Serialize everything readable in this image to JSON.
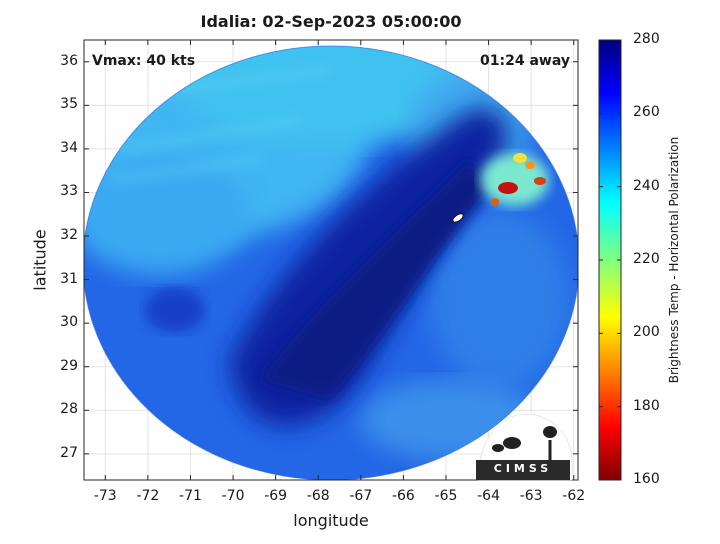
{
  "title": "Idalia: 02-Sep-2023 05:00:00",
  "annotations": {
    "vmax": "Vmax: 40 kts",
    "time_away": "01:24 away"
  },
  "logo_text": "CIMSS",
  "chart_data": {
    "type": "heatmap",
    "xlabel": "longitude",
    "ylabel": "latitude",
    "colorbar_label": "Brightness Temp - Horizontal Polarization",
    "xlim": [
      -73.5,
      -61.9
    ],
    "ylim": [
      26.4,
      36.5
    ],
    "x_ticks": [
      "-73",
      "-72",
      "-71",
      "-70",
      "-69",
      "-68",
      "-67",
      "-66",
      "-65",
      "-64",
      "-63",
      "-62"
    ],
    "y_ticks": [
      "27",
      "28",
      "29",
      "30",
      "31",
      "32",
      "33",
      "34",
      "35",
      "36"
    ],
    "colorbar_range": [
      160,
      280
    ],
    "colorbar_ticks": [
      "160",
      "180",
      "200",
      "220",
      "240",
      "260",
      "280"
    ],
    "colormap": "jet",
    "grid": true,
    "swath_center": [
      -67.75,
      31.35
    ],
    "swath_radius_deg": 5.85,
    "storm_center": [
      -64.7,
      32.2
    ],
    "colors": {
      "cold_band": "#0b1e8f",
      "background_field": "#1f5fe0",
      "warm_edge": "#3fb8f0",
      "convection": "#a00000"
    }
  }
}
